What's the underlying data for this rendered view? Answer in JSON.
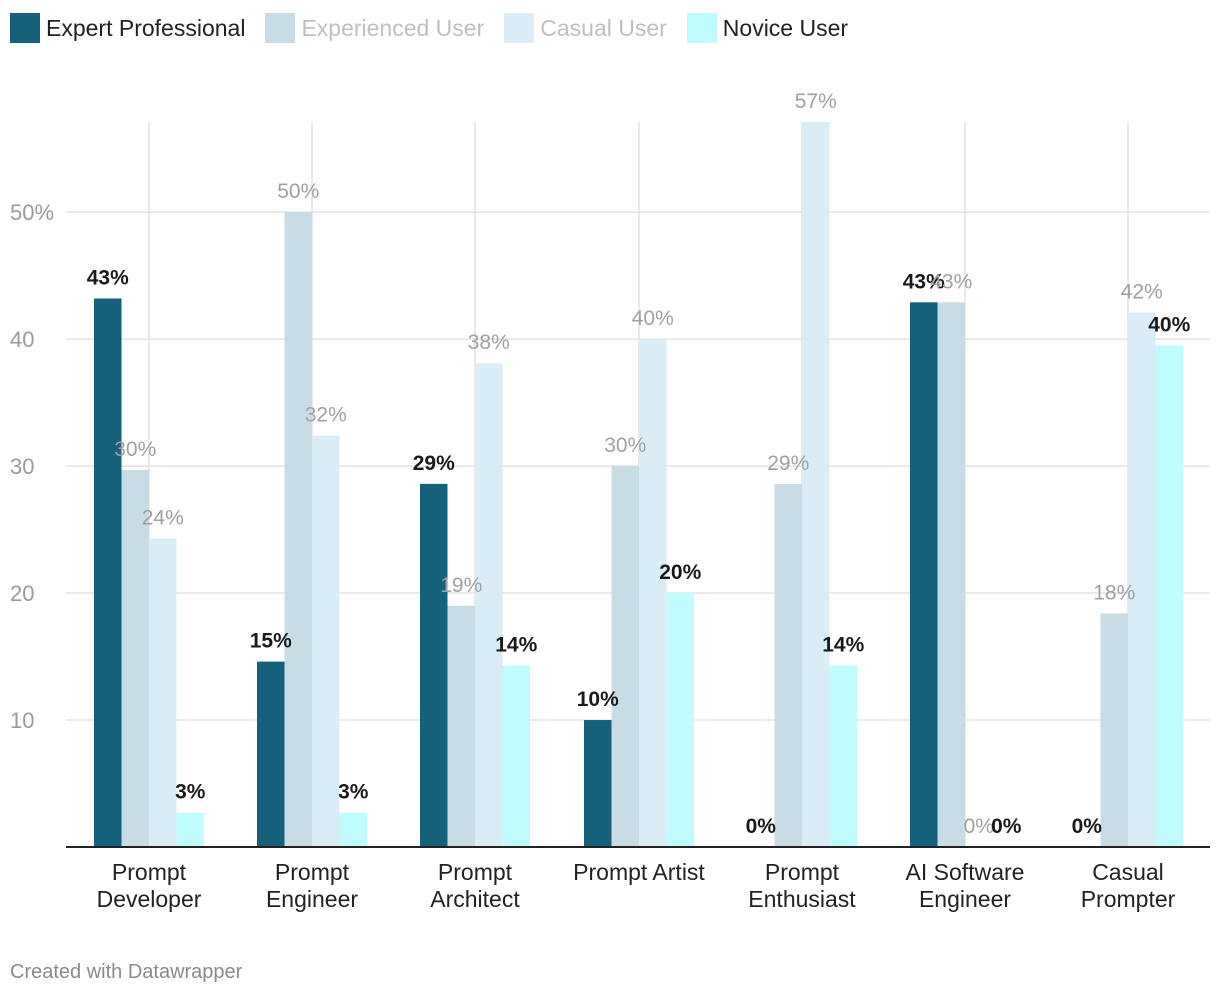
{
  "chart_data": {
    "type": "bar",
    "categories": [
      [
        "Prompt",
        "Developer"
      ],
      [
        "Prompt",
        "Engineer"
      ],
      [
        "Prompt",
        "Architect"
      ],
      [
        "Prompt Artist"
      ],
      [
        "Prompt",
        "Enthusiast"
      ],
      [
        "AI Software",
        "Engineer"
      ],
      [
        "Casual",
        "Prompter"
      ]
    ],
    "series": [
      {
        "name": "Expert Professional",
        "color": "#15607a",
        "label_color": "#1a1a1a",
        "label_bold": true,
        "values": [
          43.2,
          14.6,
          28.6,
          10.0,
          0,
          42.9,
          0
        ],
        "labels": [
          "43%",
          "15%",
          "29%",
          "10%",
          "0%",
          "43%",
          "0%"
        ]
      },
      {
        "name": "Experienced User",
        "color": "#c8dce5",
        "label_color": "#a0a0a0",
        "label_bold": false,
        "values": [
          29.7,
          50.0,
          19.0,
          30.0,
          28.6,
          42.9,
          18.4
        ],
        "labels": [
          "30%",
          "50%",
          "19%",
          "30%",
          "29%",
          "43%",
          "18%"
        ]
      },
      {
        "name": "Casual User",
        "color": "#daedf6",
        "label_color": "#a0a0a0",
        "label_bold": false,
        "values": [
          24.3,
          32.4,
          38.1,
          40.0,
          57.1,
          0,
          42.1
        ],
        "labels": [
          "24%",
          "32%",
          "38%",
          "40%",
          "57%",
          "0%",
          "42%"
        ]
      },
      {
        "name": "Novice User",
        "color": "#c0fcfd",
        "label_color": "#1a1a1a",
        "label_bold": true,
        "values": [
          2.7,
          2.7,
          14.3,
          20.0,
          14.3,
          0,
          39.5
        ],
        "labels": [
          "3%",
          "3%",
          "14%",
          "20%",
          "14%",
          "0%",
          "40%"
        ]
      }
    ],
    "yticks": [
      {
        "value": 10,
        "label": "10"
      },
      {
        "value": 20,
        "label": "20"
      },
      {
        "value": 30,
        "label": "30"
      },
      {
        "value": 40,
        "label": "40"
      },
      {
        "value": 50,
        "label": "50%"
      }
    ],
    "ylim": [
      0,
      57.1
    ],
    "grid": true,
    "legend_position": "top-left"
  },
  "footer": {
    "credit": "Created with Datawrapper"
  }
}
